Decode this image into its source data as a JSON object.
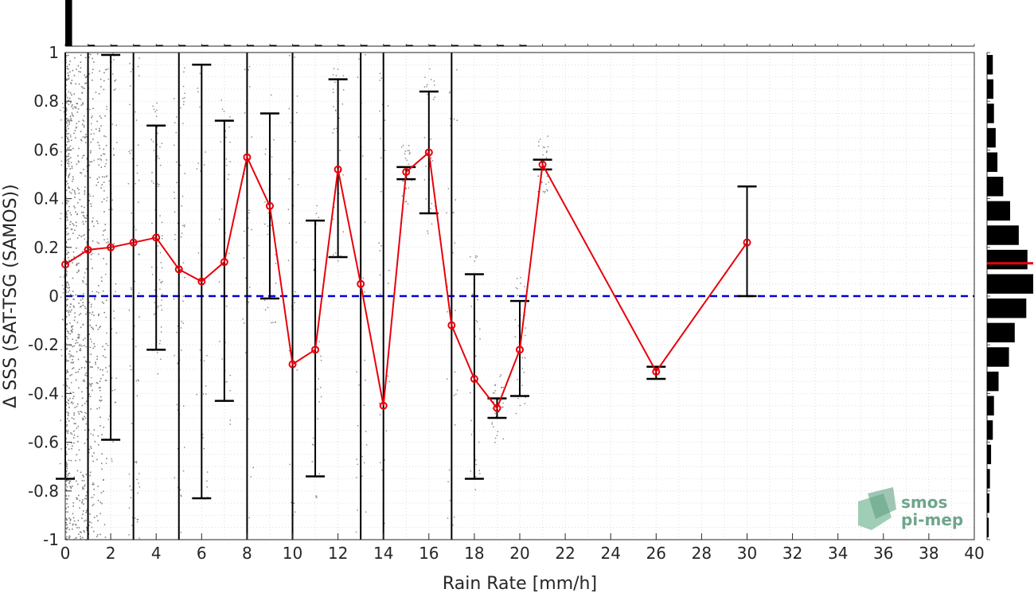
{
  "chart_data": {
    "type": "line",
    "xlabel": "Rain Rate [mm/h]",
    "ylabel": "Δ SSS (SAT-TSG (SAMOS))",
    "xlim": [
      0,
      40
    ],
    "ylim": [
      -1,
      1
    ],
    "xticks": [
      0,
      2,
      4,
      6,
      8,
      10,
      12,
      14,
      16,
      18,
      20,
      22,
      24,
      26,
      28,
      30,
      32,
      34,
      36,
      38,
      40
    ],
    "yticks": [
      -1,
      -0.8,
      -0.6,
      -0.4,
      -0.2,
      0,
      0.2,
      0.4,
      0.6,
      0.8,
      1
    ],
    "ytick_labels": [
      "-1",
      "-0.8",
      "-0.6",
      "-0.4",
      "-0.2",
      "0",
      "0.2",
      "0.4",
      "0.6",
      "0.8",
      "1"
    ],
    "grid": true,
    "reference_line": {
      "y": 0,
      "style": "dashed",
      "color": "#0000dd"
    },
    "series": [
      {
        "color": "#e8000b",
        "x": [
          0,
          1,
          2,
          3,
          4,
          5,
          6,
          7,
          8,
          9,
          10,
          11,
          12,
          13,
          14,
          15,
          16,
          17,
          18,
          19,
          20,
          21,
          26,
          30
        ],
        "y": [
          0.13,
          0.19,
          0.2,
          0.22,
          0.24,
          0.11,
          0.06,
          0.14,
          0.57,
          0.37,
          -0.28,
          -0.22,
          0.52,
          0.05,
          -0.45,
          0.51,
          0.59,
          -0.12,
          -0.34,
          -0.46,
          -0.22,
          0.54,
          -0.31,
          0.22
        ],
        "lower": [
          -0.75,
          -1.0,
          -0.59,
          -1.0,
          -0.22,
          -1.0,
          -0.83,
          -0.43,
          -1.0,
          -0.01,
          -1.0,
          -0.74,
          0.16,
          -1.0,
          -1.0,
          0.48,
          0.34,
          -1.0,
          -0.75,
          -0.5,
          -0.41,
          0.52,
          -0.34,
          0.0
        ],
        "upper": [
          1.0,
          1.0,
          0.99,
          1.0,
          0.7,
          1.0,
          0.95,
          0.72,
          1.0,
          0.75,
          1.0,
          0.31,
          0.89,
          1.0,
          1.0,
          0.53,
          0.84,
          1.0,
          0.09,
          -0.42,
          -0.02,
          0.56,
          -0.29,
          0.45
        ]
      }
    ],
    "scatter_color": "#808080",
    "top_histogram": {
      "bins": [
        0,
        1,
        2,
        3,
        4,
        5,
        6,
        7,
        8,
        9,
        10,
        11,
        12,
        13,
        14,
        15,
        16,
        17,
        18,
        19,
        20
      ],
      "counts": [
        100,
        3,
        2,
        1.5,
        1.2,
        1,
        0.8,
        0.6,
        0.6,
        0.5,
        0.5,
        0.4,
        0.4,
        0.3,
        0.3,
        0.3,
        0.3,
        0.3,
        0.2,
        0.2,
        0.2
      ]
    },
    "right_histogram": {
      "bin_centers": [
        0.95,
        0.85,
        0.75,
        0.65,
        0.55,
        0.45,
        0.35,
        0.25,
        0.15,
        0.05,
        -0.05,
        -0.15,
        -0.25,
        -0.35,
        -0.45,
        -0.55,
        -0.65,
        -0.75,
        -0.85,
        -0.95
      ],
      "counts": [
        10,
        11,
        12,
        15,
        18,
        28,
        40,
        55,
        70,
        80,
        68,
        48,
        38,
        20,
        12,
        10,
        7,
        5,
        4,
        3
      ],
      "mean": 0.135,
      "mean_color": "#e8000b"
    }
  },
  "logo": {
    "line1": "smos",
    "line2": "pi-mep"
  }
}
